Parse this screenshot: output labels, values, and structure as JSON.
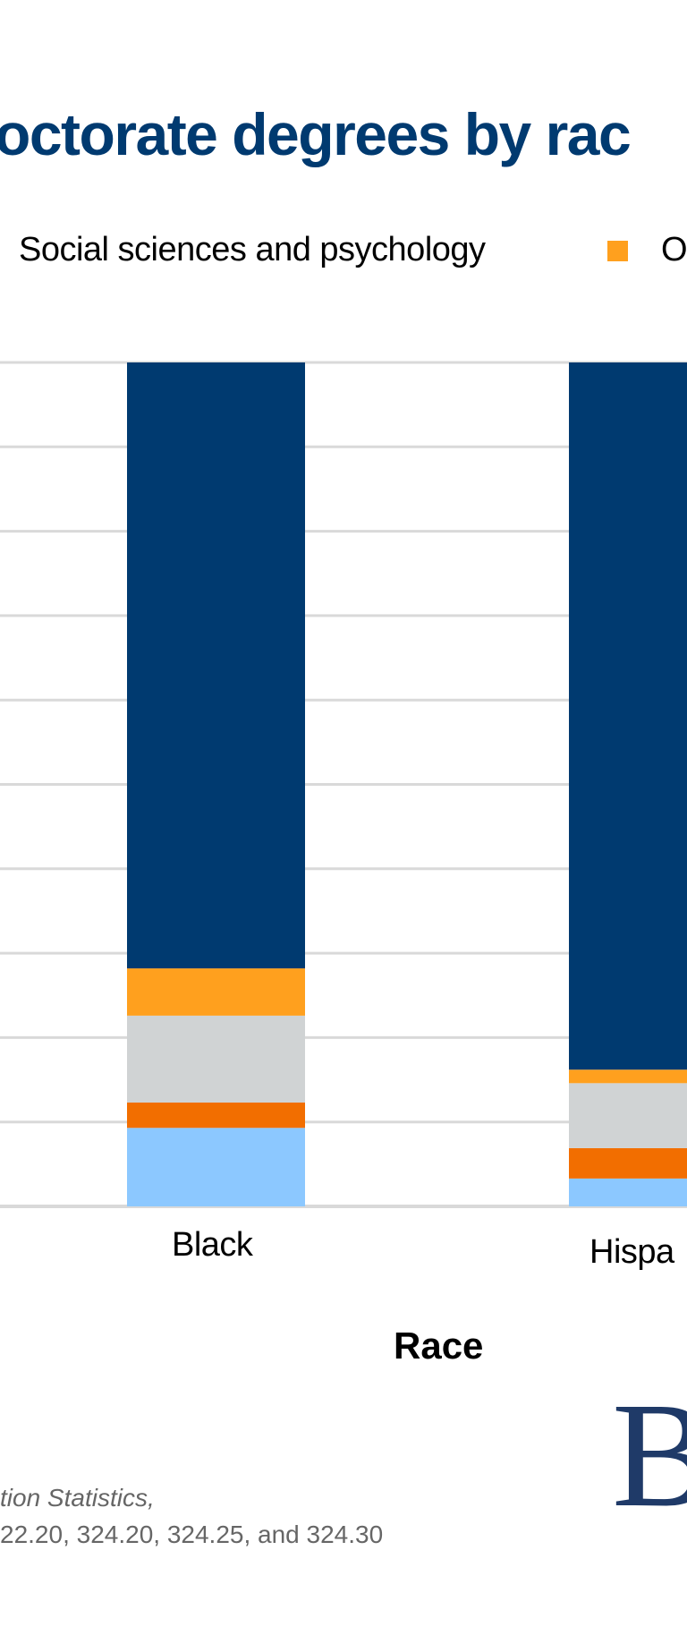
{
  "chart_data": {
    "type": "bar",
    "stacked": true,
    "title": "octorate degrees by rac",
    "xlabel": "Race",
    "ylabel": "",
    "ylim": [
      0,
      100
    ],
    "grid": true,
    "categories": [
      "Black",
      "Hispa"
    ],
    "legend": {
      "placement": "top",
      "entries": [
        {
          "name": "Social sciences and psychology",
          "color": null
        },
        {
          "name": "Ot",
          "color": "#FFA01E"
        }
      ]
    },
    "series": [
      {
        "color": "#8CC8FF",
        "values": [
          9.3,
          3.3
        ]
      },
      {
        "color": "#F26E00",
        "values": [
          3.0,
          3.6
        ]
      },
      {
        "color": "#D0D3D4",
        "values": [
          10.3,
          7.7
        ]
      },
      {
        "color": "#FFA01E",
        "values": [
          5.6,
          1.6
        ]
      },
      {
        "color": "#003A70",
        "values": [
          71.8,
          83.8
        ]
      }
    ]
  },
  "footnote": {
    "line1": "tion Statistics,",
    "line2": "22.20, 324.20, 324.25, and 324.30"
  },
  "logo": {
    "text": "B",
    "color": "#1F3A68"
  }
}
